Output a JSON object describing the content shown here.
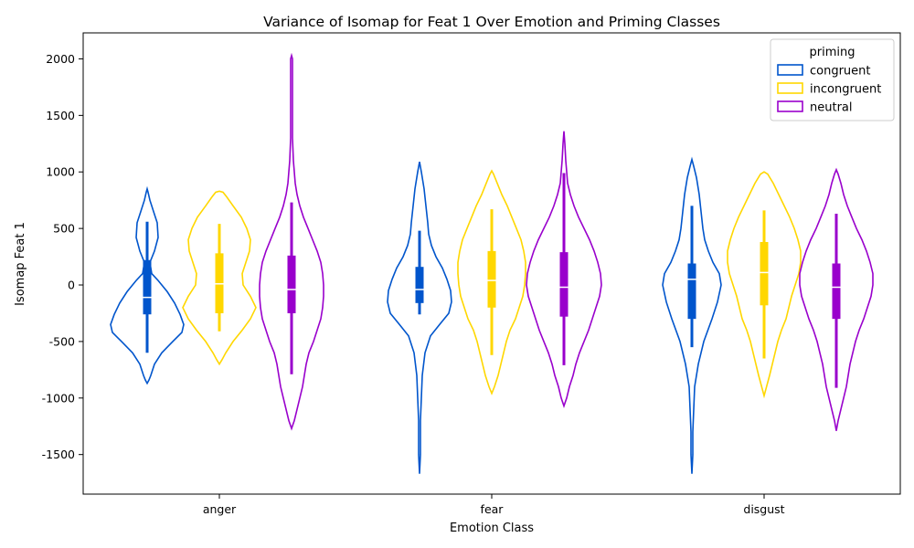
{
  "chart_data": {
    "type": "violin",
    "title": "Variance of Isomap for Feat 1 Over Emotion and Priming Classes",
    "xlabel": "Emotion Class",
    "ylabel": "Isomap Feat 1",
    "categories": [
      "anger",
      "fear",
      "disgust"
    ],
    "ylim": [
      -1850,
      2230
    ],
    "yticks": [
      -1500,
      -1000,
      -500,
      0,
      500,
      1000,
      1500,
      2000
    ],
    "grid": false,
    "legend": {
      "title": "priming",
      "placement": "top-right",
      "entries": [
        {
          "name": "congruent",
          "color": "#0055cc"
        },
        {
          "name": "incongruent",
          "color": "#ffd700"
        },
        {
          "name": "neutral",
          "color": "#9900cc"
        }
      ]
    },
    "series": [
      {
        "name": "congruent",
        "color": "#0055cc",
        "violins": [
          {
            "category": "anger",
            "stats": {
              "min": -600,
              "q1": -260,
              "median": -110,
              "q3": 220,
              "max": 560
            },
            "profile": [
              [
                -870,
                0
              ],
              [
                -840,
                2
              ],
              [
                -800,
                4
              ],
              [
                -700,
                8
              ],
              [
                -600,
                16
              ],
              [
                -500,
                28
              ],
              [
                -420,
                38
              ],
              [
                -350,
                40
              ],
              [
                -260,
                36
              ],
              [
                -160,
                30
              ],
              [
                -60,
                22
              ],
              [
                40,
                12
              ],
              [
                100,
                5
              ],
              [
                200,
                3
              ],
              [
                300,
                8
              ],
              [
                420,
                12
              ],
              [
                550,
                11
              ],
              [
                650,
                7
              ],
              [
                750,
                3
              ],
              [
                820,
                1
              ],
              [
                850,
                0
              ]
            ]
          },
          {
            "category": "fear",
            "stats": {
              "min": -260,
              "q1": -160,
              "median": -40,
              "q3": 160,
              "max": 480
            },
            "profile": [
              [
                -1670,
                0
              ],
              [
                -1500,
                1
              ],
              [
                -1200,
                1
              ],
              [
                -1000,
                2
              ],
              [
                -800,
                3
              ],
              [
                -600,
                6
              ],
              [
                -450,
                12
              ],
              [
                -350,
                22
              ],
              [
                -250,
                32
              ],
              [
                -150,
                35
              ],
              [
                -50,
                34
              ],
              [
                50,
                30
              ],
              [
                150,
                25
              ],
              [
                250,
                18
              ],
              [
                350,
                13
              ],
              [
                450,
                10
              ],
              [
                550,
                9
              ],
              [
                700,
                7
              ],
              [
                850,
                5
              ],
              [
                1000,
                2
              ],
              [
                1090,
                0
              ]
            ]
          },
          {
            "category": "disgust",
            "stats": {
              "min": -550,
              "q1": -300,
              "median": 50,
              "q3": 190,
              "max": 700
            },
            "profile": [
              [
                -1670,
                0
              ],
              [
                -1500,
                1
              ],
              [
                -1300,
                1
              ],
              [
                -1100,
                2
              ],
              [
                -900,
                3
              ],
              [
                -700,
                7
              ],
              [
                -500,
                13
              ],
              [
                -300,
                22
              ],
              [
                -150,
                28
              ],
              [
                0,
                32
              ],
              [
                100,
                30
              ],
              [
                200,
                23
              ],
              [
                300,
                18
              ],
              [
                400,
                14
              ],
              [
                500,
                12
              ],
              [
                650,
                10
              ],
              [
                800,
                8
              ],
              [
                950,
                5
              ],
              [
                1050,
                2
              ],
              [
                1110,
                0
              ]
            ]
          }
        ]
      },
      {
        "name": "incongruent",
        "color": "#ffd700",
        "violins": [
          {
            "category": "anger",
            "stats": {
              "min": -410,
              "q1": -250,
              "median": 10,
              "q3": 280,
              "max": 540
            },
            "profile": [
              [
                -700,
                0
              ],
              [
                -660,
                3
              ],
              [
                -600,
                7
              ],
              [
                -500,
                15
              ],
              [
                -400,
                25
              ],
              [
                -300,
                34
              ],
              [
                -200,
                40
              ],
              [
                -100,
                34
              ],
              [
                0,
                26
              ],
              [
                100,
                25
              ],
              [
                200,
                29
              ],
              [
                300,
                33
              ],
              [
                400,
                34
              ],
              [
                500,
                30
              ],
              [
                600,
                24
              ],
              [
                700,
                15
              ],
              [
                780,
                8
              ],
              [
                820,
                4
              ],
              [
                830,
                0
              ]
            ]
          },
          {
            "category": "fear",
            "stats": {
              "min": -620,
              "q1": -200,
              "median": 40,
              "q3": 300,
              "max": 670
            },
            "profile": [
              [
                -960,
                0
              ],
              [
                -900,
                3
              ],
              [
                -800,
                7
              ],
              [
                -700,
                10
              ],
              [
                -600,
                13
              ],
              [
                -500,
                16
              ],
              [
                -400,
                20
              ],
              [
                -300,
                26
              ],
              [
                -200,
                30
              ],
              [
                -100,
                34
              ],
              [
                0,
                36
              ],
              [
                100,
                37
              ],
              [
                200,
                37
              ],
              [
                300,
                35
              ],
              [
                400,
                32
              ],
              [
                500,
                27
              ],
              [
                600,
                22
              ],
              [
                700,
                17
              ],
              [
                800,
                11
              ],
              [
                900,
                6
              ],
              [
                980,
                2
              ],
              [
                1010,
                0
              ]
            ]
          },
          {
            "category": "disgust",
            "stats": {
              "min": -650,
              "q1": -180,
              "median": 110,
              "q3": 380,
              "max": 660
            },
            "profile": [
              [
                -980,
                0
              ],
              [
                -920,
                2
              ],
              [
                -800,
                6
              ],
              [
                -700,
                9
              ],
              [
                -600,
                12
              ],
              [
                -500,
                15
              ],
              [
                -400,
                19
              ],
              [
                -300,
                24
              ],
              [
                -200,
                27
              ],
              [
                -100,
                30
              ],
              [
                0,
                34
              ],
              [
                100,
                38
              ],
              [
                200,
                40
              ],
              [
                300,
                40
              ],
              [
                400,
                37
              ],
              [
                500,
                33
              ],
              [
                600,
                28
              ],
              [
                700,
                22
              ],
              [
                800,
                16
              ],
              [
                900,
                10
              ],
              [
                980,
                4
              ],
              [
                1000,
                0
              ]
            ]
          }
        ]
      },
      {
        "name": "neutral",
        "color": "#9900cc",
        "violins": [
          {
            "category": "anger",
            "stats": {
              "min": -790,
              "q1": -250,
              "median": -40,
              "q3": 260,
              "max": 730
            },
            "profile": [
              [
                -1270,
                0
              ],
              [
                -1200,
                3
              ],
              [
                -1100,
                6
              ],
              [
                -1000,
                9
              ],
              [
                -900,
                12
              ],
              [
                -800,
                14
              ],
              [
                -700,
                16
              ],
              [
                -600,
                19
              ],
              [
                -500,
                24
              ],
              [
                -400,
                28
              ],
              [
                -300,
                32
              ],
              [
                -200,
                34
              ],
              [
                -100,
                35
              ],
              [
                0,
                35
              ],
              [
                100,
                34
              ],
              [
                200,
                32
              ],
              [
                300,
                28
              ],
              [
                400,
                23
              ],
              [
                500,
                18
              ],
              [
                600,
                13
              ],
              [
                700,
                9
              ],
              [
                800,
                6
              ],
              [
                900,
                4
              ],
              [
                1000,
                3
              ],
              [
                1100,
                2
              ],
              [
                1300,
                1
              ],
              [
                1600,
                1
              ],
              [
                1800,
                1
              ],
              [
                2000,
                1
              ],
              [
                2030,
                0
              ]
            ]
          },
          {
            "category": "fear",
            "stats": {
              "min": -710,
              "q1": -280,
              "median": -20,
              "q3": 290,
              "max": 990
            },
            "profile": [
              [
                -1070,
                0
              ],
              [
                -1000,
                3
              ],
              [
                -900,
                6
              ],
              [
                -800,
                10
              ],
              [
                -700,
                13
              ],
              [
                -600,
                17
              ],
              [
                -500,
                22
              ],
              [
                -400,
                27
              ],
              [
                -300,
                31
              ],
              [
                -200,
                35
              ],
              [
                -100,
                39
              ],
              [
                0,
                41
              ],
              [
                100,
                40
              ],
              [
                200,
                37
              ],
              [
                300,
                33
              ],
              [
                400,
                28
              ],
              [
                500,
                22
              ],
              [
                600,
                16
              ],
              [
                700,
                11
              ],
              [
                800,
                7
              ],
              [
                900,
                4
              ],
              [
                1000,
                3
              ],
              [
                1100,
                2
              ],
              [
                1250,
                1
              ],
              [
                1360,
                0
              ]
            ]
          },
          {
            "category": "disgust",
            "stats": {
              "min": -910,
              "q1": -300,
              "median": -20,
              "q3": 190,
              "max": 630
            },
            "profile": [
              [
                -1290,
                0
              ],
              [
                -1200,
                2
              ],
              [
                -1100,
                5
              ],
              [
                -1000,
                8
              ],
              [
                -900,
                11
              ],
              [
                -800,
                13
              ],
              [
                -700,
                15
              ],
              [
                -600,
                18
              ],
              [
                -500,
                21
              ],
              [
                -400,
                25
              ],
              [
                -300,
                30
              ],
              [
                -200,
                34
              ],
              [
                -100,
                38
              ],
              [
                0,
                40
              ],
              [
                100,
                40
              ],
              [
                200,
                37
              ],
              [
                300,
                33
              ],
              [
                400,
                28
              ],
              [
                500,
                22
              ],
              [
                600,
                17
              ],
              [
                700,
                12
              ],
              [
                800,
                8
              ],
              [
                900,
                5
              ],
              [
                980,
                2
              ],
              [
                1020,
                0
              ]
            ]
          }
        ]
      }
    ]
  }
}
